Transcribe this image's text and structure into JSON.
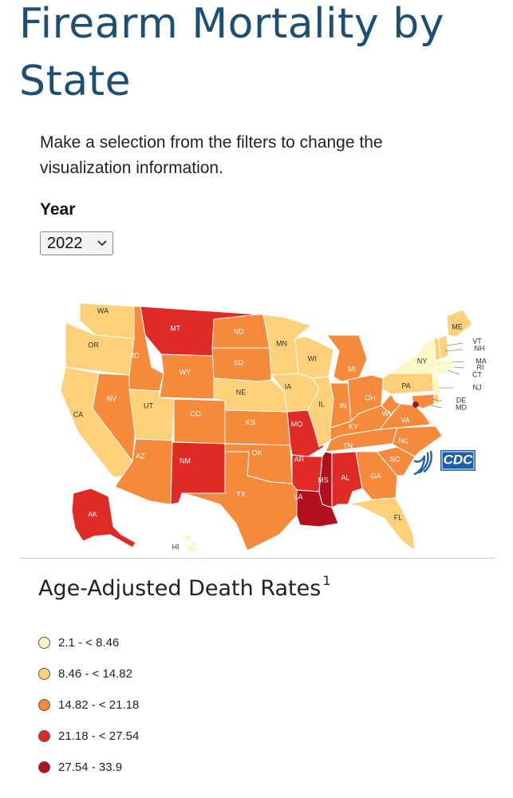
{
  "page": {
    "title": "Firearm Mortality by State",
    "intro": "Make a selection from the filters to change the visualization information."
  },
  "filter": {
    "year_label": "Year",
    "year_value": "2022"
  },
  "map": {
    "logo_text": "CDC",
    "states": [
      {
        "abbr": "WA",
        "bin": 1
      },
      {
        "abbr": "OR",
        "bin": 1
      },
      {
        "abbr": "CA",
        "bin": 1
      },
      {
        "abbr": "ID",
        "bin": 2
      },
      {
        "abbr": "NV",
        "bin": 2
      },
      {
        "abbr": "MT",
        "bin": 3
      },
      {
        "abbr": "WY",
        "bin": 2
      },
      {
        "abbr": "UT",
        "bin": 1
      },
      {
        "abbr": "AZ",
        "bin": 2
      },
      {
        "abbr": "CO",
        "bin": 2
      },
      {
        "abbr": "NM",
        "bin": 3
      },
      {
        "abbr": "ND",
        "bin": 2
      },
      {
        "abbr": "SD",
        "bin": 2
      },
      {
        "abbr": "NE",
        "bin": 1
      },
      {
        "abbr": "KS",
        "bin": 2
      },
      {
        "abbr": "OK",
        "bin": 2
      },
      {
        "abbr": "TX",
        "bin": 2
      },
      {
        "abbr": "MN",
        "bin": 1
      },
      {
        "abbr": "IA",
        "bin": 1
      },
      {
        "abbr": "MO",
        "bin": 3
      },
      {
        "abbr": "AR",
        "bin": 3
      },
      {
        "abbr": "LA",
        "bin": 4
      },
      {
        "abbr": "WI",
        "bin": 1
      },
      {
        "abbr": "IL",
        "bin": 1
      },
      {
        "abbr": "MI",
        "bin": 2
      },
      {
        "abbr": "IN",
        "bin": 2
      },
      {
        "abbr": "OH",
        "bin": 2
      },
      {
        "abbr": "KY",
        "bin": 2
      },
      {
        "abbr": "TN",
        "bin": 2
      },
      {
        "abbr": "MS",
        "bin": 4
      },
      {
        "abbr": "AL",
        "bin": 3
      },
      {
        "abbr": "GA",
        "bin": 2
      },
      {
        "abbr": "FL",
        "bin": 1
      },
      {
        "abbr": "SC",
        "bin": 2
      },
      {
        "abbr": "NC",
        "bin": 2
      },
      {
        "abbr": "VA",
        "bin": 2
      },
      {
        "abbr": "WV",
        "bin": 2
      },
      {
        "abbr": "PA",
        "bin": 1
      },
      {
        "abbr": "NY",
        "bin": 0
      },
      {
        "abbr": "ME",
        "bin": 1
      },
      {
        "abbr": "VT",
        "bin": 1
      },
      {
        "abbr": "NH",
        "bin": 1
      },
      {
        "abbr": "MA",
        "bin": 0
      },
      {
        "abbr": "RI",
        "bin": 0
      },
      {
        "abbr": "CT",
        "bin": 0
      },
      {
        "abbr": "NJ",
        "bin": 0
      },
      {
        "abbr": "DE",
        "bin": 1
      },
      {
        "abbr": "MD",
        "bin": 2
      },
      {
        "abbr": "DC",
        "bin": 4
      },
      {
        "abbr": "AK",
        "bin": 3
      },
      {
        "abbr": "HI",
        "bin": 0
      }
    ]
  },
  "legend": {
    "title": "Age-Adjusted Death Rates",
    "footnote": "1",
    "bins": [
      {
        "label": "2.1 - < 8.46",
        "color": "#fdf7c6"
      },
      {
        "label": "8.46 - < 14.82",
        "color": "#fdd17a"
      },
      {
        "label": "14.82 - < 21.18",
        "color": "#f68a3c"
      },
      {
        "label": "21.18 - < 27.54",
        "color": "#e02a26"
      },
      {
        "label": "27.54 - 33.9",
        "color": "#b3101f"
      }
    ]
  }
}
